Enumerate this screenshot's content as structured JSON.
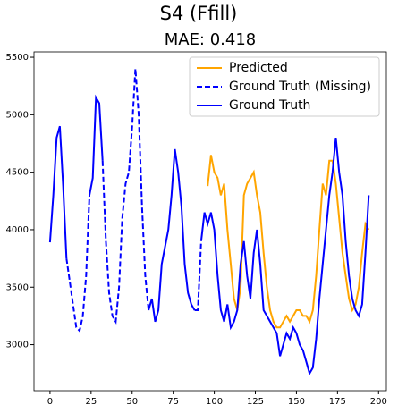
{
  "chart_data": {
    "type": "line",
    "suptitle": "S4 (Ffill)",
    "title": "MAE: 0.418",
    "x": [
      0,
      2,
      4,
      6,
      8,
      10,
      12,
      14,
      16,
      18,
      20,
      22,
      24,
      26,
      28,
      30,
      32,
      34,
      36,
      38,
      40,
      42,
      44,
      46,
      48,
      50,
      52,
      54,
      56,
      58,
      60,
      62,
      64,
      66,
      68,
      70,
      72,
      74,
      76,
      78,
      80,
      82,
      84,
      86,
      88,
      90,
      92,
      94,
      96,
      98,
      100,
      102,
      104,
      106,
      108,
      110,
      112,
      114,
      116,
      118,
      120,
      122,
      124,
      126,
      128,
      130,
      132,
      134,
      136,
      138,
      140,
      142,
      144,
      146,
      148,
      150,
      152,
      154,
      156,
      158,
      160,
      162,
      164,
      166,
      168,
      170,
      172,
      174,
      176,
      178,
      180,
      182,
      184,
      186,
      188,
      190,
      192,
      194
    ],
    "series": [
      {
        "name": "Predicted",
        "color": "orange",
        "dash": false,
        "values": [
          null,
          null,
          null,
          null,
          null,
          null,
          null,
          null,
          null,
          null,
          null,
          null,
          null,
          null,
          null,
          null,
          null,
          null,
          null,
          null,
          null,
          null,
          null,
          null,
          null,
          null,
          null,
          null,
          null,
          null,
          null,
          null,
          null,
          null,
          null,
          null,
          null,
          null,
          null,
          null,
          null,
          null,
          null,
          null,
          null,
          null,
          null,
          null,
          4380,
          4650,
          4500,
          4450,
          4300,
          4400,
          4000,
          3700,
          3400,
          3300,
          3500,
          4300,
          4400,
          4450,
          4500,
          4300,
          4150,
          3800,
          3500,
          3300,
          3200,
          3150,
          3150,
          3200,
          3250,
          3200,
          3250,
          3300,
          3300,
          3250,
          3250,
          3200,
          3300,
          3600,
          4000,
          4400,
          4300,
          4600,
          4600,
          4400,
          4100,
          3800,
          3600,
          3400,
          3300,
          3350,
          3500,
          3800,
          4050,
          4000
        ]
      },
      {
        "name": "Ground Truth (Missing)",
        "color": "blue",
        "dash": true,
        "values": [
          null,
          null,
          null,
          null,
          null,
          3750,
          3550,
          3350,
          3150,
          3120,
          3250,
          3600,
          4300,
          null,
          null,
          null,
          4600,
          3900,
          3450,
          3250,
          3200,
          3500,
          4100,
          4400,
          4500,
          4900,
          5400,
          5000,
          4200,
          3600,
          3300,
          null,
          null,
          null,
          null,
          null,
          null,
          null,
          null,
          null,
          null,
          null,
          null,
          null,
          3300,
          3300,
          3900,
          null,
          null,
          null,
          null,
          null,
          null,
          null,
          null,
          null,
          null,
          null,
          null,
          null,
          null,
          null,
          null,
          null,
          null,
          null,
          null,
          null,
          null,
          null,
          null,
          null,
          null,
          null,
          null,
          null,
          null,
          null,
          null,
          null,
          null,
          null,
          null,
          null,
          null,
          null,
          null,
          null,
          null,
          null,
          null,
          null,
          null,
          null,
          null,
          null,
          null,
          null
        ]
      },
      {
        "name": "Ground Truth",
        "color": "blue",
        "dash": false,
        "values": [
          3890,
          4300,
          4800,
          4900,
          4380,
          3750,
          null,
          null,
          null,
          null,
          null,
          null,
          4300,
          4450,
          5150,
          5100,
          4600,
          null,
          null,
          null,
          null,
          null,
          null,
          null,
          null,
          null,
          null,
          null,
          null,
          null,
          3300,
          3400,
          3200,
          3300,
          3700,
          3850,
          4000,
          4300,
          4700,
          4500,
          4200,
          3700,
          3450,
          3350,
          3300,
          null,
          3900,
          4150,
          4050,
          4150,
          4000,
          3600,
          3300,
          3200,
          3350,
          3150,
          3200,
          3300,
          3700,
          3900,
          3600,
          3400,
          3800,
          4000,
          3700,
          3300,
          3250,
          3200,
          3150,
          3100,
          2900,
          3000,
          3100,
          3050,
          3150,
          3100,
          3000,
          2950,
          2850,
          2750,
          2800,
          3050,
          3400,
          3700,
          4000,
          4300,
          4500,
          4800,
          4500,
          4300,
          3900,
          3600,
          3400,
          3300,
          3250,
          3350,
          3800,
          4300
        ]
      }
    ],
    "xlim": [
      -9.75,
      204.75
    ],
    "ylim": [
      2600,
      5547
    ],
    "xticks": [
      0,
      25,
      50,
      75,
      100,
      125,
      150,
      175,
      200
    ],
    "yticks": [
      3000,
      3500,
      4000,
      4500,
      5000,
      5500
    ],
    "legend": "upper right"
  }
}
